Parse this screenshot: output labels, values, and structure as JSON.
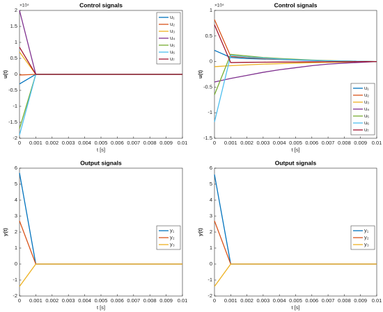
{
  "chart_data": [
    {
      "type": "line",
      "title": "Control signals",
      "xlabel": "t [s]",
      "ylabel": "u(t)",
      "y_exponent_label": "×10⁴",
      "legend": "upper right",
      "x": [
        0,
        0.001,
        0.002,
        0.003,
        0.004,
        0.005,
        0.006,
        0.007,
        0.008,
        0.009,
        0.01
      ],
      "xlim": [
        0,
        0.01
      ],
      "xticks": [
        0,
        0.001,
        0.002,
        0.003,
        0.004,
        0.005,
        0.006,
        0.007,
        0.008,
        0.009,
        0.01
      ],
      "ylim": [
        -2,
        2
      ],
      "yticks": [
        -2,
        -1.5,
        -1,
        -0.5,
        0,
        0.5,
        1,
        1.5,
        2
      ],
      "series": [
        {
          "name": "u₁",
          "color": "#0072BD",
          "values": [
            -0.3,
            0,
            0,
            0,
            0,
            0,
            0,
            0,
            0,
            0,
            0
          ]
        },
        {
          "name": "u₂",
          "color": "#D95319",
          "values": [
            -0.02,
            0,
            0,
            0,
            0,
            0,
            0,
            0,
            0,
            0,
            0
          ]
        },
        {
          "name": "u₃",
          "color": "#EDB120",
          "values": [
            0.7,
            0,
            0,
            0,
            0,
            0,
            0,
            0,
            0,
            0,
            0
          ]
        },
        {
          "name": "u₄",
          "color": "#7E2F8E",
          "values": [
            2.0,
            0,
            0,
            0,
            0,
            0,
            0,
            0,
            0,
            0,
            0
          ]
        },
        {
          "name": "u₅",
          "color": "#77AC30",
          "values": [
            -1.7,
            0,
            0,
            0,
            0,
            0,
            0,
            0,
            0,
            0,
            0
          ]
        },
        {
          "name": "u₆",
          "color": "#4DBEEE",
          "values": [
            -1.9,
            0,
            0,
            0,
            0,
            0,
            0,
            0,
            0,
            0,
            0
          ]
        },
        {
          "name": "u₇",
          "color": "#A2142F",
          "values": [
            0.85,
            0,
            0,
            0,
            0,
            0,
            0,
            0,
            0,
            0,
            0
          ]
        }
      ]
    },
    {
      "type": "line",
      "title": "Control signals",
      "xlabel": "t [s]",
      "ylabel": "u(t)",
      "y_exponent_label": "×10⁴",
      "legend": "lower right",
      "x": [
        0,
        0.001,
        0.002,
        0.003,
        0.004,
        0.005,
        0.006,
        0.007,
        0.008,
        0.009,
        0.01
      ],
      "xlim": [
        0,
        0.01
      ],
      "xticks": [
        0,
        0.001,
        0.002,
        0.003,
        0.004,
        0.005,
        0.006,
        0.007,
        0.008,
        0.009,
        0.01
      ],
      "ylim": [
        -1.5,
        1
      ],
      "yticks": [
        -1.5,
        -1,
        -0.5,
        0,
        0.5,
        1
      ],
      "series": [
        {
          "name": "u₁",
          "color": "#0072BD",
          "values": [
            0.22,
            0.08,
            0.06,
            0.05,
            0.04,
            0.03,
            0.02,
            0.015,
            0.01,
            0.005,
            0
          ]
        },
        {
          "name": "u₂",
          "color": "#D95319",
          "values": [
            0.82,
            0.1,
            0.08,
            0.06,
            0.045,
            0.035,
            0.025,
            0.015,
            0.01,
            0.005,
            0
          ]
        },
        {
          "name": "u₃",
          "color": "#EDB120",
          "values": [
            -0.1,
            -0.08,
            -0.065,
            -0.05,
            -0.04,
            -0.03,
            -0.022,
            -0.015,
            -0.01,
            -0.005,
            0
          ]
        },
        {
          "name": "u₄",
          "color": "#7E2F8E",
          "values": [
            -0.4,
            -0.33,
            -0.27,
            -0.21,
            -0.16,
            -0.12,
            -0.08,
            -0.05,
            -0.03,
            -0.015,
            0
          ]
        },
        {
          "name": "u₅",
          "color": "#77AC30",
          "values": [
            -0.65,
            0.14,
            0.11,
            0.08,
            0.06,
            0.045,
            0.03,
            0.02,
            0.012,
            0.005,
            0
          ]
        },
        {
          "name": "u₆",
          "color": "#4DBEEE",
          "values": [
            -1.18,
            0.12,
            0.09,
            0.07,
            0.05,
            0.035,
            0.025,
            0.015,
            0.01,
            0.005,
            0
          ]
        },
        {
          "name": "u₇",
          "color": "#A2142F",
          "values": [
            0.72,
            -0.02,
            -0.015,
            -0.012,
            -0.01,
            -0.008,
            -0.006,
            -0.004,
            -0.002,
            -0.001,
            0
          ]
        }
      ]
    },
    {
      "type": "line",
      "title": "Output signals",
      "xlabel": "t [s]",
      "ylabel": "y(t)",
      "legend": "right",
      "x": [
        0,
        0.001,
        0.002,
        0.003,
        0.004,
        0.005,
        0.006,
        0.007,
        0.008,
        0.009,
        0.01
      ],
      "xlim": [
        0,
        0.01
      ],
      "xticks": [
        0,
        0.001,
        0.002,
        0.003,
        0.004,
        0.005,
        0.006,
        0.007,
        0.008,
        0.009,
        0.01
      ],
      "ylim": [
        -2,
        6
      ],
      "yticks": [
        -2,
        -1,
        0,
        1,
        2,
        3,
        4,
        5,
        6
      ],
      "series": [
        {
          "name": "y₁",
          "color": "#0072BD",
          "values": [
            5.7,
            0,
            0,
            0,
            0,
            0,
            0,
            0,
            0,
            0,
            0
          ]
        },
        {
          "name": "y₂",
          "color": "#D95319",
          "values": [
            2.7,
            0,
            0,
            0,
            0,
            0,
            0,
            0,
            0,
            0,
            0
          ]
        },
        {
          "name": "y₃",
          "color": "#EDB120",
          "values": [
            -1.4,
            0,
            0,
            0,
            0,
            0,
            0,
            0,
            0,
            0,
            0
          ]
        }
      ]
    },
    {
      "type": "line",
      "title": "Output signals",
      "xlabel": "t [s]",
      "ylabel": "y(t)",
      "legend": "right",
      "x": [
        0,
        0.001,
        0.002,
        0.003,
        0.004,
        0.005,
        0.006,
        0.007,
        0.008,
        0.009,
        0.01
      ],
      "xlim": [
        0,
        0.01
      ],
      "xticks": [
        0,
        0.001,
        0.002,
        0.003,
        0.004,
        0.005,
        0.006,
        0.007,
        0.008,
        0.009,
        0.01
      ],
      "ylim": [
        -2,
        6
      ],
      "yticks": [
        -2,
        -1,
        0,
        1,
        2,
        3,
        4,
        5,
        6
      ],
      "series": [
        {
          "name": "y₁",
          "color": "#0072BD",
          "values": [
            5.6,
            0,
            0,
            0,
            0,
            0,
            0,
            0,
            0,
            0,
            0
          ]
        },
        {
          "name": "y₂",
          "color": "#D95319",
          "values": [
            2.7,
            0,
            0,
            0,
            0,
            0,
            0,
            0,
            0,
            0,
            0
          ]
        },
        {
          "name": "y₃",
          "color": "#EDB120",
          "values": [
            -1.4,
            0,
            0,
            0,
            0,
            0,
            0,
            0,
            0,
            0,
            0
          ]
        }
      ]
    }
  ]
}
